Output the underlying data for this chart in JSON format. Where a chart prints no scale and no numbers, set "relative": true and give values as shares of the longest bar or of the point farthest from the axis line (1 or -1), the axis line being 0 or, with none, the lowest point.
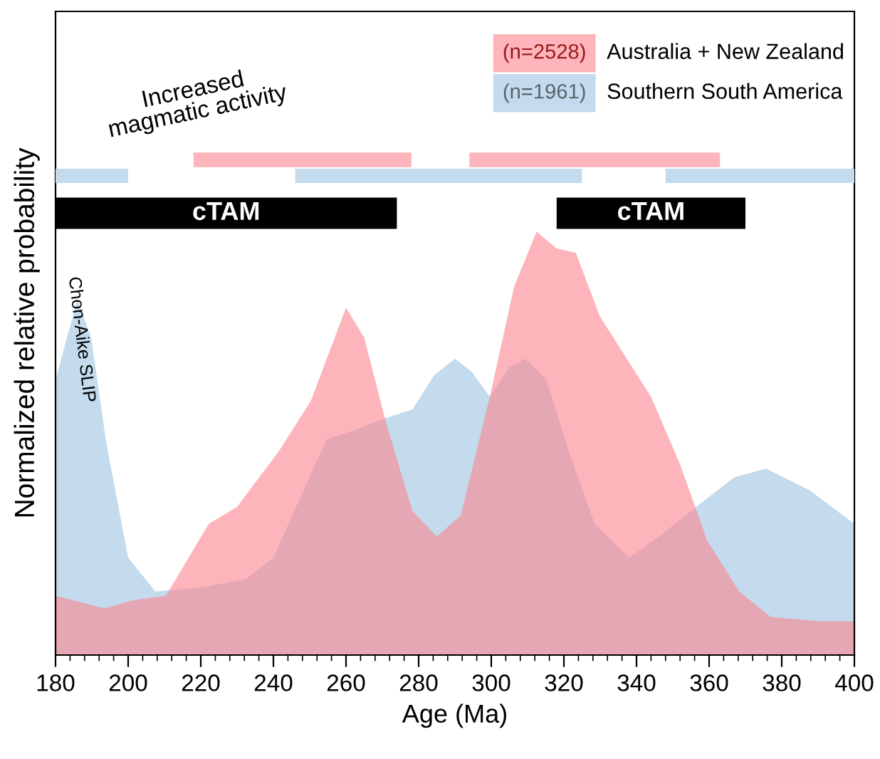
{
  "chart_data": [
    {
      "type": "bar",
      "orientation": "horizontal",
      "categories": [
        null
      ],
      "xlim": [
        180,
        400
      ],
      "tick_labels": false,
      "series": [
        {
          "color": "#fdb5bb",
          "values": [
            60
          ],
          "base": [
            218
          ]
        },
        {
          "color": "#fdb5bb",
          "values": [
            69
          ],
          "base": [
            294
          ]
        }
      ]
    },
    {
      "type": "bar",
      "orientation": "horizontal",
      "categories": [
        null
      ],
      "xlim": [
        180,
        400
      ],
      "tick_labels": false,
      "series": [
        {
          "color": "#c3dbed",
          "values": [
            20
          ],
          "base": [
            180
          ]
        },
        {
          "color": "#c3dbed",
          "values": [
            79
          ],
          "base": [
            246
          ]
        },
        {
          "color": "#c3dbed",
          "values": [
            52
          ],
          "base": [
            348
          ]
        }
      ]
    },
    {
      "type": "bar",
      "orientation": "horizontal",
      "categories": [
        null
      ],
      "xlim": [
        180,
        400
      ],
      "tick_labels": false,
      "series": [
        {
          "color": "#000000",
          "values": [
            94
          ],
          "base": [
            180
          ],
          "value_labels": [
            "cTAM"
          ]
        },
        {
          "color": "#000000",
          "values": [
            52
          ],
          "base": [
            318
          ],
          "value_labels": [
            "cTAM"
          ]
        }
      ]
    },
    {
      "type": "area",
      "relative": true,
      "xlabel": "Age (Ma)",
      "ylabel": "Normalized relative probability",
      "xlim": [
        180,
        400
      ],
      "xticks": [
        180,
        200,
        220,
        240,
        260,
        280,
        300,
        320,
        340,
        360,
        380,
        400
      ],
      "legend": "top right",
      "grid": false,
      "series": [
        {
          "name": "Southern South America",
          "color": "#c3dbed",
          "x": [
            180,
            186,
            189.8,
            194,
            200,
            207.5,
            220.8,
            232.5,
            240,
            247.3,
            254.7,
            262,
            271,
            278.3,
            284.2,
            290,
            294.5,
            299.6,
            304.9,
            309.3,
            315.2,
            321.8,
            328.5,
            338,
            346.2,
            356.5,
            366.9,
            375.7,
            387.5,
            400
          ],
          "values": [
            0.65,
            0.84,
            0.75,
            0.5,
            0.23,
            0.15,
            0.16,
            0.18,
            0.23,
            0.37,
            0.51,
            0.53,
            0.56,
            0.58,
            0.66,
            0.7,
            0.67,
            0.61,
            0.68,
            0.7,
            0.65,
            0.47,
            0.31,
            0.23,
            0.28,
            0.35,
            0.42,
            0.44,
            0.39,
            0.31
          ]
        },
        {
          "name": "Australia + New Zealand",
          "color": "#fdb5bb",
          "x": [
            180,
            193.5,
            201.6,
            210.4,
            222.2,
            230,
            241.4,
            250.3,
            260,
            265,
            271,
            278.3,
            285,
            291.6,
            299.6,
            306.3,
            312.5,
            318,
            323.3,
            329.9,
            337.3,
            344,
            352,
            359.5,
            368.3,
            377,
            390.5,
            400
          ],
          "values": [
            0.14,
            0.11,
            0.13,
            0.14,
            0.31,
            0.35,
            0.48,
            0.6,
            0.82,
            0.75,
            0.55,
            0.34,
            0.28,
            0.33,
            0.61,
            0.87,
            1,
            0.96,
            0.95,
            0.8,
            0.7,
            0.61,
            0.45,
            0.27,
            0.15,
            0.09,
            0.08,
            0.08
          ]
        }
      ],
      "annotations": [
        "(n=1961)",
        "(n=2528)",
        "Increased\nmagmatic activity",
        "Chon-Aike SLIP"
      ]
    }
  ]
}
